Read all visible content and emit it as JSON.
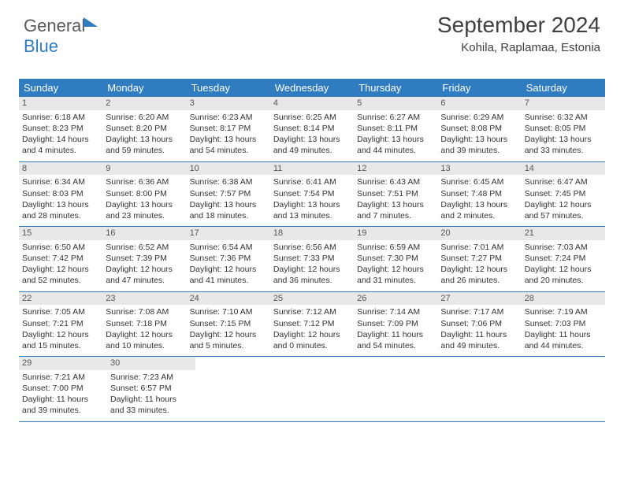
{
  "brand": {
    "word1": "General",
    "word2": "Blue"
  },
  "title": "September 2024",
  "location": "Kohila, Raplamaa, Estonia",
  "colors": {
    "accent": "#2f7cc0",
    "day_bar": "#e8e8e8",
    "text": "#404040"
  },
  "day_headers": [
    "Sunday",
    "Monday",
    "Tuesday",
    "Wednesday",
    "Thursday",
    "Friday",
    "Saturday"
  ],
  "weeks": [
    [
      {
        "n": "1",
        "sr": "Sunrise: 6:18 AM",
        "ss": "Sunset: 8:23 PM",
        "dl1": "Daylight: 14 hours",
        "dl2": "and 4 minutes."
      },
      {
        "n": "2",
        "sr": "Sunrise: 6:20 AM",
        "ss": "Sunset: 8:20 PM",
        "dl1": "Daylight: 13 hours",
        "dl2": "and 59 minutes."
      },
      {
        "n": "3",
        "sr": "Sunrise: 6:23 AM",
        "ss": "Sunset: 8:17 PM",
        "dl1": "Daylight: 13 hours",
        "dl2": "and 54 minutes."
      },
      {
        "n": "4",
        "sr": "Sunrise: 6:25 AM",
        "ss": "Sunset: 8:14 PM",
        "dl1": "Daylight: 13 hours",
        "dl2": "and 49 minutes."
      },
      {
        "n": "5",
        "sr": "Sunrise: 6:27 AM",
        "ss": "Sunset: 8:11 PM",
        "dl1": "Daylight: 13 hours",
        "dl2": "and 44 minutes."
      },
      {
        "n": "6",
        "sr": "Sunrise: 6:29 AM",
        "ss": "Sunset: 8:08 PM",
        "dl1": "Daylight: 13 hours",
        "dl2": "and 39 minutes."
      },
      {
        "n": "7",
        "sr": "Sunrise: 6:32 AM",
        "ss": "Sunset: 8:05 PM",
        "dl1": "Daylight: 13 hours",
        "dl2": "and 33 minutes."
      }
    ],
    [
      {
        "n": "8",
        "sr": "Sunrise: 6:34 AM",
        "ss": "Sunset: 8:03 PM",
        "dl1": "Daylight: 13 hours",
        "dl2": "and 28 minutes."
      },
      {
        "n": "9",
        "sr": "Sunrise: 6:36 AM",
        "ss": "Sunset: 8:00 PM",
        "dl1": "Daylight: 13 hours",
        "dl2": "and 23 minutes."
      },
      {
        "n": "10",
        "sr": "Sunrise: 6:38 AM",
        "ss": "Sunset: 7:57 PM",
        "dl1": "Daylight: 13 hours",
        "dl2": "and 18 minutes."
      },
      {
        "n": "11",
        "sr": "Sunrise: 6:41 AM",
        "ss": "Sunset: 7:54 PM",
        "dl1": "Daylight: 13 hours",
        "dl2": "and 13 minutes."
      },
      {
        "n": "12",
        "sr": "Sunrise: 6:43 AM",
        "ss": "Sunset: 7:51 PM",
        "dl1": "Daylight: 13 hours",
        "dl2": "and 7 minutes."
      },
      {
        "n": "13",
        "sr": "Sunrise: 6:45 AM",
        "ss": "Sunset: 7:48 PM",
        "dl1": "Daylight: 13 hours",
        "dl2": "and 2 minutes."
      },
      {
        "n": "14",
        "sr": "Sunrise: 6:47 AM",
        "ss": "Sunset: 7:45 PM",
        "dl1": "Daylight: 12 hours",
        "dl2": "and 57 minutes."
      }
    ],
    [
      {
        "n": "15",
        "sr": "Sunrise: 6:50 AM",
        "ss": "Sunset: 7:42 PM",
        "dl1": "Daylight: 12 hours",
        "dl2": "and 52 minutes."
      },
      {
        "n": "16",
        "sr": "Sunrise: 6:52 AM",
        "ss": "Sunset: 7:39 PM",
        "dl1": "Daylight: 12 hours",
        "dl2": "and 47 minutes."
      },
      {
        "n": "17",
        "sr": "Sunrise: 6:54 AM",
        "ss": "Sunset: 7:36 PM",
        "dl1": "Daylight: 12 hours",
        "dl2": "and 41 minutes."
      },
      {
        "n": "18",
        "sr": "Sunrise: 6:56 AM",
        "ss": "Sunset: 7:33 PM",
        "dl1": "Daylight: 12 hours",
        "dl2": "and 36 minutes."
      },
      {
        "n": "19",
        "sr": "Sunrise: 6:59 AM",
        "ss": "Sunset: 7:30 PM",
        "dl1": "Daylight: 12 hours",
        "dl2": "and 31 minutes."
      },
      {
        "n": "20",
        "sr": "Sunrise: 7:01 AM",
        "ss": "Sunset: 7:27 PM",
        "dl1": "Daylight: 12 hours",
        "dl2": "and 26 minutes."
      },
      {
        "n": "21",
        "sr": "Sunrise: 7:03 AM",
        "ss": "Sunset: 7:24 PM",
        "dl1": "Daylight: 12 hours",
        "dl2": "and 20 minutes."
      }
    ],
    [
      {
        "n": "22",
        "sr": "Sunrise: 7:05 AM",
        "ss": "Sunset: 7:21 PM",
        "dl1": "Daylight: 12 hours",
        "dl2": "and 15 minutes."
      },
      {
        "n": "23",
        "sr": "Sunrise: 7:08 AM",
        "ss": "Sunset: 7:18 PM",
        "dl1": "Daylight: 12 hours",
        "dl2": "and 10 minutes."
      },
      {
        "n": "24",
        "sr": "Sunrise: 7:10 AM",
        "ss": "Sunset: 7:15 PM",
        "dl1": "Daylight: 12 hours",
        "dl2": "and 5 minutes."
      },
      {
        "n": "25",
        "sr": "Sunrise: 7:12 AM",
        "ss": "Sunset: 7:12 PM",
        "dl1": "Daylight: 12 hours",
        "dl2": "and 0 minutes."
      },
      {
        "n": "26",
        "sr": "Sunrise: 7:14 AM",
        "ss": "Sunset: 7:09 PM",
        "dl1": "Daylight: 11 hours",
        "dl2": "and 54 minutes."
      },
      {
        "n": "27",
        "sr": "Sunrise: 7:17 AM",
        "ss": "Sunset: 7:06 PM",
        "dl1": "Daylight: 11 hours",
        "dl2": "and 49 minutes."
      },
      {
        "n": "28",
        "sr": "Sunrise: 7:19 AM",
        "ss": "Sunset: 7:03 PM",
        "dl1": "Daylight: 11 hours",
        "dl2": "and 44 minutes."
      }
    ],
    [
      {
        "n": "29",
        "sr": "Sunrise: 7:21 AM",
        "ss": "Sunset: 7:00 PM",
        "dl1": "Daylight: 11 hours",
        "dl2": "and 39 minutes."
      },
      {
        "n": "30",
        "sr": "Sunrise: 7:23 AM",
        "ss": "Sunset: 6:57 PM",
        "dl1": "Daylight: 11 hours",
        "dl2": "and 33 minutes."
      },
      null,
      null,
      null,
      null,
      null
    ]
  ]
}
